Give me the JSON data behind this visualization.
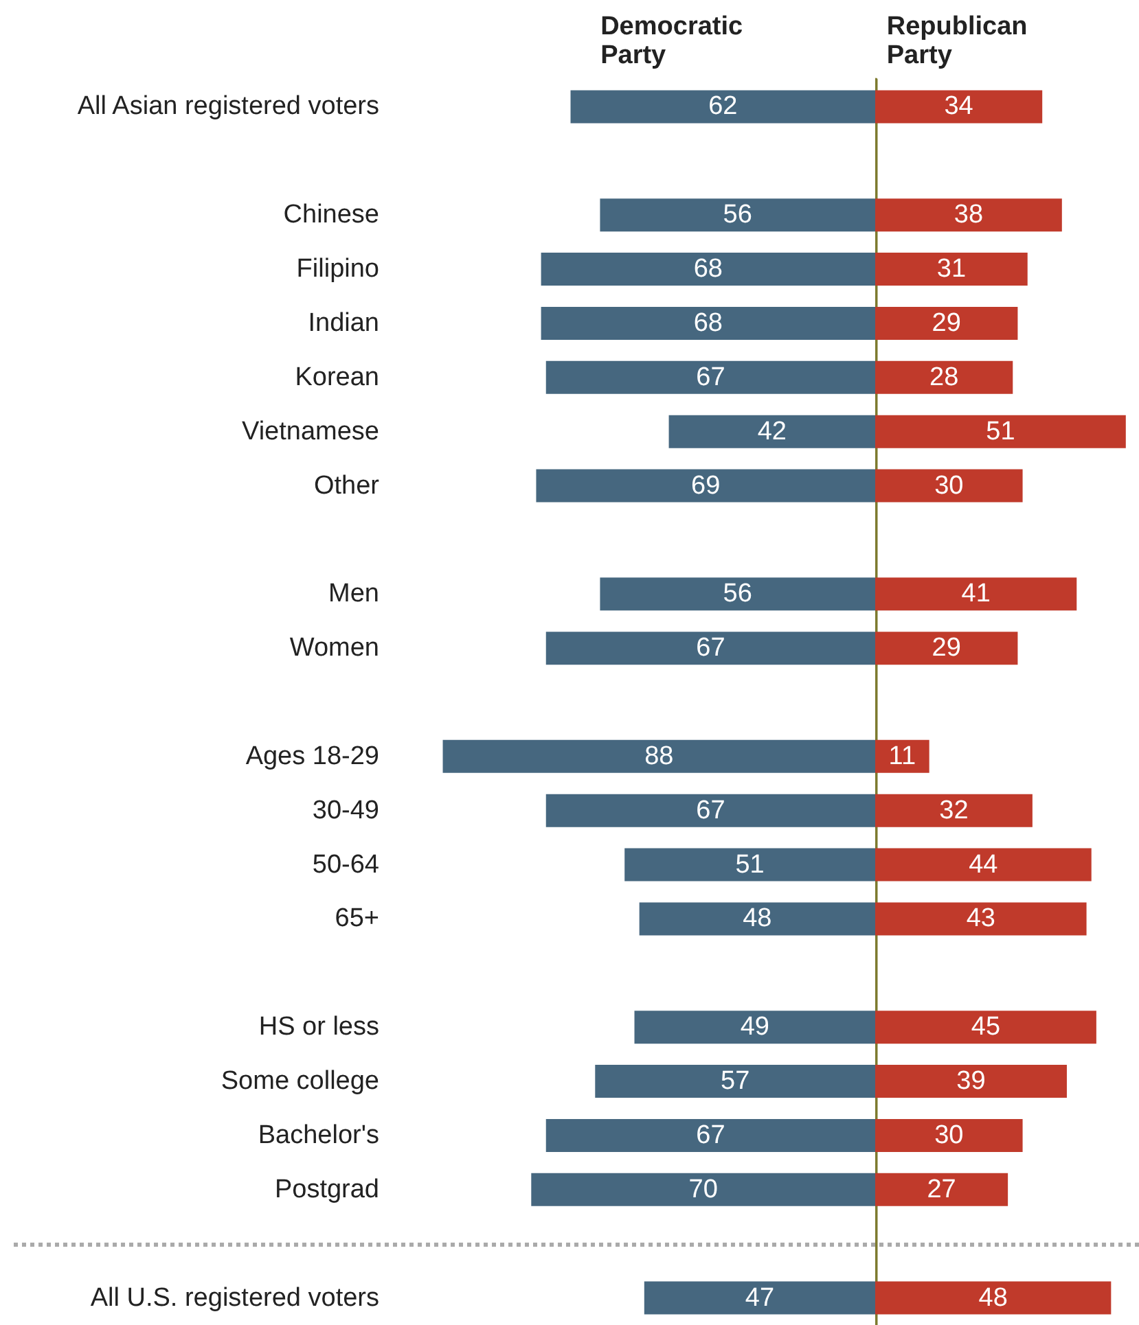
{
  "chart_data": [
    {
      "type": "bar",
      "orientation": "horizontal",
      "title": "Democratic Party",
      "categories": [
        "All Asian registered voters",
        null,
        "Chinese",
        "Filipino",
        "Indian",
        "Korean",
        "Vietnamese",
        "Other",
        null,
        "Men",
        "Women",
        null,
        "Ages 18-29",
        "30-49",
        "50-64",
        "65+",
        null,
        "HS or less",
        "Some college",
        "Bachelor's",
        "Postgrad",
        null,
        "All U.S. registered voters"
      ],
      "series": [
        {
          "color": "#46677f",
          "values": [
            62,
            null,
            56,
            68,
            68,
            67,
            42,
            69,
            null,
            56,
            67,
            null,
            88,
            67,
            51,
            48,
            null,
            49,
            57,
            67,
            70,
            null,
            47
          ]
        }
      ],
      "data_labels": true,
      "tick_labels": "y"
    },
    {
      "type": "bar",
      "orientation": "horizontal",
      "title": "Republican Party",
      "categories": [
        null,
        null,
        null,
        null,
        null,
        null,
        null,
        null,
        null,
        null,
        null,
        null,
        null,
        null,
        null,
        null,
        null,
        null,
        null,
        null,
        null,
        null,
        null
      ],
      "series": [
        {
          "color": "#c03a2b",
          "values": [
            34,
            null,
            38,
            31,
            29,
            28,
            51,
            30,
            null,
            41,
            29,
            null,
            11,
            32,
            44,
            43,
            null,
            45,
            39,
            30,
            27,
            null,
            48
          ]
        }
      ],
      "data_labels": true,
      "tick_labels": false
    }
  ]
}
